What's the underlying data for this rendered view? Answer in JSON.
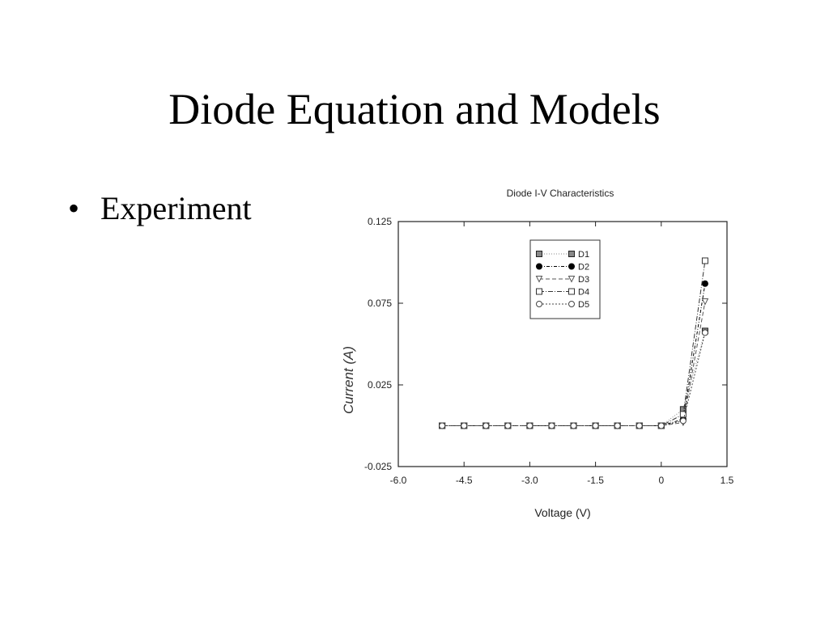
{
  "slide": {
    "title": "Diode Equation and Models",
    "bullets": [
      {
        "marker": "•",
        "text": "Experiment"
      }
    ]
  },
  "chart_data": {
    "type": "line",
    "title": "Diode I-V Characteristics",
    "xlabel": "Voltage (V)",
    "ylabel": "Current (A)",
    "xlim": [
      -6.0,
      1.5
    ],
    "ylim": [
      -0.025,
      0.125
    ],
    "x_ticks": [
      "-6.0",
      "-4.5",
      "-3.0",
      "-1.5",
      "0",
      "1.5"
    ],
    "y_ticks": [
      "0.125",
      "0.075",
      "0.025",
      "-0.025"
    ],
    "grid": false,
    "legend_position": "top-right",
    "series": [
      {
        "name": "D1",
        "marker": "square-filled-gray",
        "dash": "1,2",
        "color": "#888888",
        "x": [
          -5.0,
          -4.5,
          -4.0,
          -3.5,
          -3.0,
          -2.5,
          -2.0,
          -1.5,
          -1.0,
          -0.5,
          0.0,
          0.5,
          1.0
        ],
        "y": [
          0,
          0,
          0,
          0,
          0,
          0,
          0,
          0,
          0,
          0,
          0,
          0.01,
          0.058
        ]
      },
      {
        "name": "D2",
        "marker": "circle-filled",
        "dash": "4,2,1,2",
        "color": "#000000",
        "x": [
          -5.0,
          -4.5,
          -4.0,
          -3.5,
          -3.0,
          -2.5,
          -2.0,
          -1.5,
          -1.0,
          -0.5,
          0.0,
          0.5,
          1.0
        ],
        "y": [
          0,
          0,
          0,
          0,
          0,
          0,
          0,
          0,
          0,
          0,
          0,
          0.004,
          0.087
        ]
      },
      {
        "name": "D3",
        "marker": "triangle-down-open",
        "dash": "5,3",
        "color": "#555555",
        "x": [
          -5.0,
          -4.5,
          -4.0,
          -3.5,
          -3.0,
          -2.5,
          -2.0,
          -1.5,
          -1.0,
          -0.5,
          0.0,
          0.5,
          1.0
        ],
        "y": [
          0,
          0,
          0,
          0,
          0,
          0,
          0,
          0,
          0,
          0,
          0,
          0.002,
          0.076
        ]
      },
      {
        "name": "D4",
        "marker": "square-open",
        "dash": "6,2,1,2",
        "color": "#333333",
        "x": [
          -5.0,
          -4.5,
          -4.0,
          -3.5,
          -3.0,
          -2.5,
          -2.0,
          -1.5,
          -1.0,
          -0.5,
          0.0,
          0.5,
          1.0
        ],
        "y": [
          0,
          0,
          0,
          0,
          0,
          0,
          0,
          0,
          0,
          0,
          0,
          0.007,
          0.101
        ]
      },
      {
        "name": "D5",
        "marker": "circle-open",
        "dash": "2,2",
        "color": "#444444",
        "x": [
          -5.0,
          -4.5,
          -4.0,
          -3.5,
          -3.0,
          -2.5,
          -2.0,
          -1.5,
          -1.0,
          -0.5,
          0.0,
          0.5,
          1.0
        ],
        "y": [
          0,
          0,
          0,
          0,
          0,
          0,
          0,
          0,
          0,
          0,
          0,
          0.003,
          0.057
        ]
      }
    ]
  }
}
